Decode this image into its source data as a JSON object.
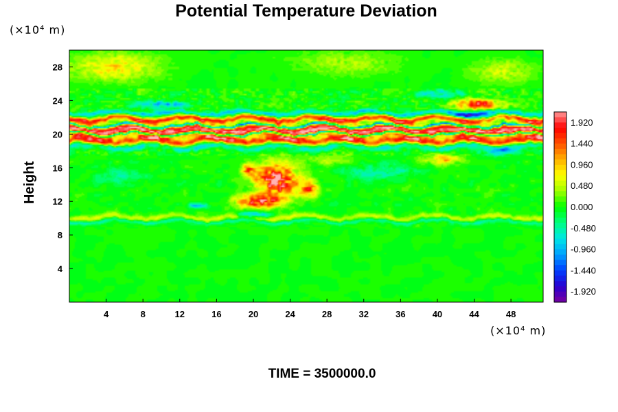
{
  "chart_data": {
    "type": "heatmap",
    "title": "Potential Temperature Deviation",
    "ylabel": "Height",
    "y_unit": "(×10⁴ m)",
    "x_unit": "(×10⁴ m)",
    "x_ticks": [
      4,
      8,
      12,
      16,
      20,
      24,
      28,
      32,
      36,
      40,
      44,
      48
    ],
    "y_ticks": [
      4,
      8,
      12,
      16,
      20,
      24,
      28
    ],
    "xlim": [
      0,
      51.5
    ],
    "ylim": [
      0,
      30
    ],
    "colorbar": {
      "labels": [
        "1.920",
        "1.440",
        "0.960",
        "0.480",
        "0.000",
        "-0.480",
        "-0.960",
        "-1.440",
        "-1.920"
      ],
      "range": [
        -2.16,
        2.16
      ],
      "colors": [
        "#7a00a0",
        "#2800d0",
        "#0040ff",
        "#00a0ff",
        "#00e6e6",
        "#00ff80",
        "#00ff00",
        "#a0ff00",
        "#ffff00",
        "#ffb000",
        "#ff5000",
        "#ff0000",
        "#ff9a9a"
      ]
    },
    "features": [
      {
        "kind": "band",
        "y": 20.4,
        "half_width": 0.9,
        "value": 2.1
      },
      {
        "kind": "band",
        "y": 20.0,
        "half_width": 0.18,
        "value": -2.1
      },
      {
        "kind": "band",
        "y": 21.0,
        "half_width": 0.18,
        "value": -2.1
      },
      {
        "kind": "band",
        "y": 21.8,
        "half_width": 0.35,
        "value": 1.5
      },
      {
        "kind": "band",
        "y": 19.2,
        "half_width": 0.45,
        "value": 1.4
      },
      {
        "kind": "band",
        "y": 22.5,
        "half_width": 0.3,
        "value": -0.8
      },
      {
        "kind": "band",
        "y": 18.5,
        "half_width": 0.4,
        "value": -0.6
      },
      {
        "kind": "band",
        "y": 10.1,
        "half_width": 0.35,
        "value": 0.5
      },
      {
        "kind": "band",
        "y": 9.6,
        "half_width": 0.25,
        "value": -0.45
      },
      {
        "kind": "blob",
        "x": 22.5,
        "y": 14.5,
        "rx": 2.8,
        "ry": 2.4,
        "value": 2.0
      },
      {
        "kind": "blob",
        "x": 20.5,
        "y": 12.0,
        "rx": 3.0,
        "ry": 0.9,
        "value": 1.7
      },
      {
        "kind": "blob",
        "x": 26.0,
        "y": 13.5,
        "rx": 1.2,
        "ry": 1.2,
        "value": 1.3
      },
      {
        "kind": "blob",
        "x": 19.5,
        "y": 15.8,
        "rx": 1.0,
        "ry": 0.9,
        "value": 1.2
      },
      {
        "kind": "blob",
        "x": 20.0,
        "y": 10.4,
        "rx": 2.0,
        "ry": 0.4,
        "value": -1.2
      },
      {
        "kind": "blob",
        "x": 14.0,
        "y": 11.5,
        "rx": 1.2,
        "ry": 0.4,
        "value": -0.9
      },
      {
        "kind": "blob",
        "x": 44.5,
        "y": 23.5,
        "rx": 3.0,
        "ry": 0.8,
        "value": 1.6
      },
      {
        "kind": "blob",
        "x": 44.0,
        "y": 22.2,
        "rx": 3.5,
        "ry": 0.6,
        "value": -1.1
      },
      {
        "kind": "blob",
        "x": 40.5,
        "y": 24.8,
        "rx": 3.0,
        "ry": 0.6,
        "value": -0.7
      },
      {
        "kind": "blob",
        "x": 40.5,
        "y": 17.0,
        "rx": 2.5,
        "ry": 0.7,
        "value": 1.0
      },
      {
        "kind": "blob",
        "x": 46.5,
        "y": 18.0,
        "rx": 2.5,
        "ry": 0.7,
        "value": -0.6
      },
      {
        "kind": "blob",
        "x": 10.0,
        "y": 23.5,
        "rx": 3.5,
        "ry": 0.5,
        "value": -0.9
      },
      {
        "kind": "blob",
        "x": 5.0,
        "y": 28.0,
        "rx": 6.0,
        "ry": 2.0,
        "value": 0.75
      },
      {
        "kind": "blob",
        "x": 30.0,
        "y": 28.5,
        "rx": 7.0,
        "ry": 1.8,
        "value": 0.4
      },
      {
        "kind": "blob",
        "x": 47.0,
        "y": 27.5,
        "rx": 4.0,
        "ry": 1.8,
        "value": 0.5
      },
      {
        "kind": "blob",
        "x": 34.0,
        "y": 15.5,
        "rx": 5.0,
        "ry": 1.2,
        "value": -0.45
      },
      {
        "kind": "blob",
        "x": 6.0,
        "y": 15.0,
        "rx": 4.0,
        "ry": 1.2,
        "value": -0.35
      },
      {
        "kind": "blob",
        "x": 28.0,
        "y": 17.0,
        "rx": 3.0,
        "ry": 0.8,
        "value": 0.45
      }
    ]
  },
  "footer": {
    "time_label": "TIME = 3500000.0"
  }
}
